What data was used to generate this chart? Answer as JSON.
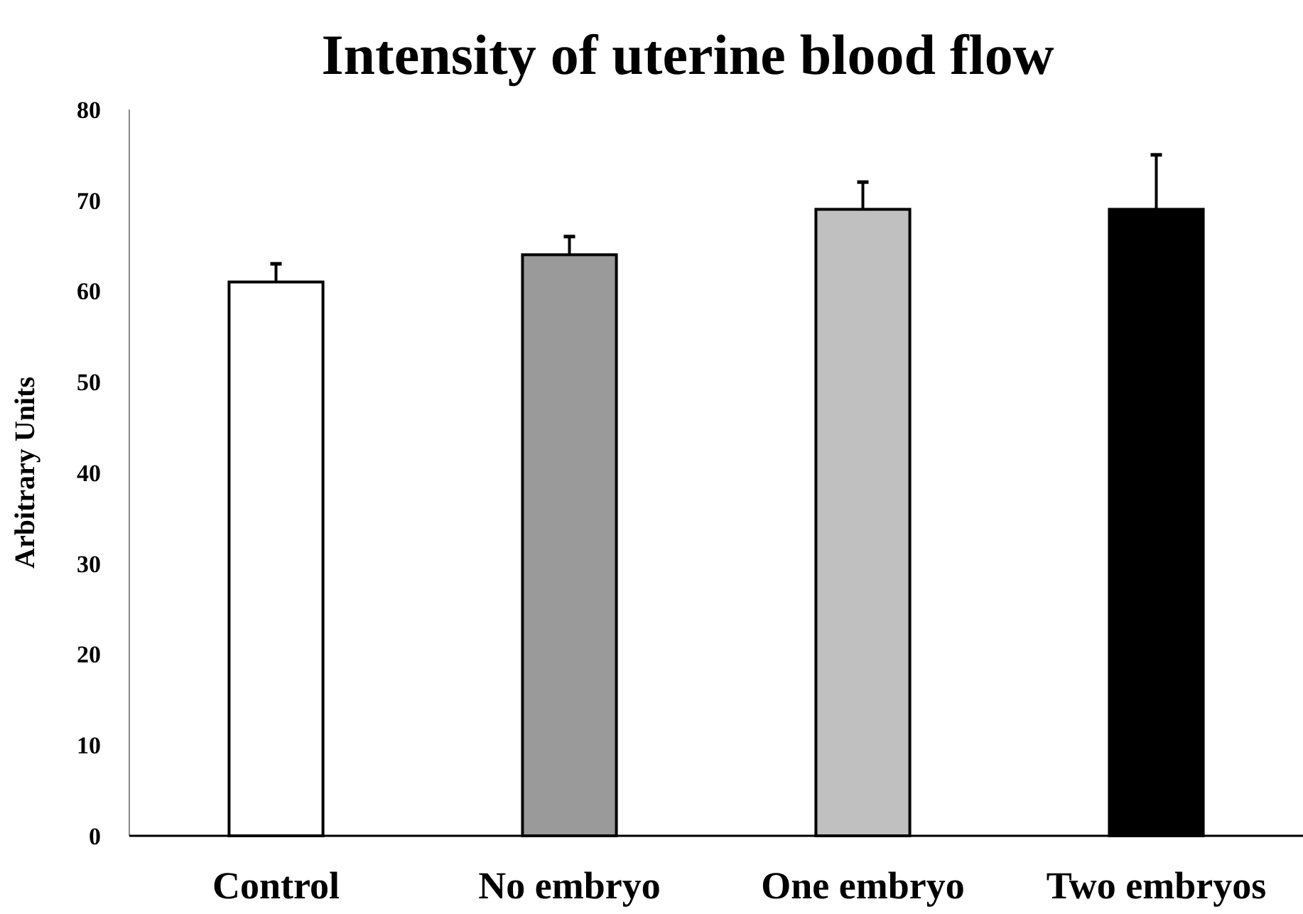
{
  "chart_data": {
    "type": "bar",
    "title": "Intensity of uterine blood flow",
    "ylabel": "Arbitrary Units",
    "categories": [
      "Control",
      "No embryo",
      "One embryo",
      "Two embryos"
    ],
    "values": [
      61,
      64,
      69,
      69
    ],
    "errors": [
      2,
      2,
      3,
      6
    ],
    "colors": [
      "#ffffff",
      "#9a9a9a",
      "#c0c0c0",
      "#000000"
    ],
    "ylim": [
      0,
      80
    ],
    "yticks": [
      0,
      10,
      20,
      30,
      40,
      50,
      60,
      70,
      80
    ],
    "grid": false
  }
}
